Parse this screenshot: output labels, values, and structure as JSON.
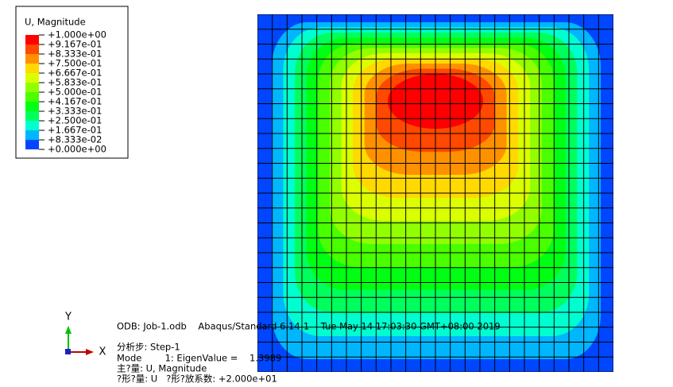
{
  "legend": {
    "title": "U, Magnitude",
    "labels": [
      "+1.000e+00",
      "+9.167e-01",
      "+8.333e-01",
      "+7.500e-01",
      "+6.667e-01",
      "+5.833e-01",
      "+5.000e-01",
      "+4.167e-01",
      "+3.333e-01",
      "+2.500e-01",
      "+1.667e-01",
      "+8.333e-02",
      "+0.000e+00"
    ],
    "colors": [
      "#ff0000",
      "#ff4800",
      "#ff9100",
      "#ffd900",
      "#dbff00",
      "#92ff00",
      "#49ff00",
      "#00ff12",
      "#00ff5c",
      "#00ffd0",
      "#00b6ff",
      "#0046ff"
    ]
  },
  "triad": {
    "y": "Y",
    "x": "X"
  },
  "info": {
    "lines": [
      "ODB: Job-1.odb    Abaqus/Standard 6.14-1    Tue May 14 17:03:30 GMT+08:00 2019",
      "分析步: Step-1",
      "Mode        1: EigenValue =    1.3989",
      "主?量: U, Magnitude",
      "?形?量: U   ?形?放系数: +2.000e+01"
    ]
  }
}
